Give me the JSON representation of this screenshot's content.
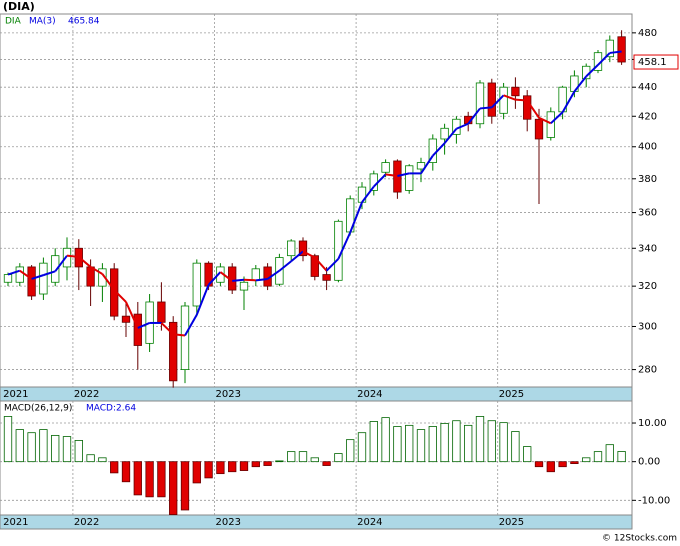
{
  "footer": "© 12Stocks.com",
  "chart_data": [
    {
      "type": "candlestick",
      "title": "(DIA)",
      "log_scale": true,
      "grid": true,
      "categories": [
        null,
        null,
        null,
        null,
        null,
        null,
        null,
        null,
        null,
        null,
        null,
        null,
        null,
        null,
        null,
        null,
        null,
        null,
        null,
        null,
        null,
        null,
        null,
        null,
        null,
        null,
        null,
        null,
        null,
        null,
        null,
        null,
        null,
        null,
        null,
        null,
        null,
        null,
        null,
        null,
        null,
        null,
        null,
        null,
        null,
        null,
        null,
        null,
        null,
        null,
        null,
        null,
        null
      ],
      "series": [
        {
          "name": "DIA",
          "color": "#008000",
          "down_color": "#e00000",
          "open": [
            322,
            322,
            330,
            316,
            322,
            330,
            340,
            330,
            320,
            329,
            305,
            306,
            292,
            312,
            302,
            280,
            310,
            332,
            322,
            330,
            318,
            323,
            330,
            321,
            336,
            344,
            336,
            326,
            323,
            349,
            366,
            373,
            384,
            391,
            373,
            386,
            390,
            405,
            408,
            420,
            415,
            443,
            422,
            440,
            434,
            418,
            406,
            423,
            437,
            446,
            452,
            462,
            477
          ],
          "high": [
            327,
            332,
            331,
            335,
            340,
            346,
            345,
            334,
            332,
            332,
            312,
            312,
            316,
            322,
            305,
            312,
            334,
            333,
            332,
            332,
            325,
            331,
            332,
            337,
            345,
            346,
            337,
            330,
            356,
            370,
            378,
            385,
            392,
            392,
            389,
            393,
            408,
            415,
            420,
            423,
            445,
            446,
            443,
            447,
            438,
            425,
            426,
            441,
            452,
            457,
            467,
            478,
            482
          ],
          "low": [
            320,
            320,
            313,
            313,
            320,
            323,
            318,
            310,
            312,
            303,
            295,
            280,
            288,
            298,
            272,
            274,
            305,
            318,
            320,
            316,
            308,
            320,
            318,
            320,
            333,
            333,
            323,
            318,
            322,
            347,
            362,
            370,
            381,
            368,
            371,
            378,
            385,
            395,
            402,
            410,
            412,
            415,
            418,
            425,
            410,
            365,
            404,
            418,
            433,
            440,
            450,
            458,
            456
          ],
          "close": [
            326,
            330,
            315,
            332,
            336,
            340,
            330,
            320,
            329,
            305,
            302,
            291,
            312,
            302,
            275,
            310,
            332,
            320,
            330,
            318,
            322,
            329,
            320,
            335,
            344,
            336,
            325,
            323,
            355,
            368,
            375,
            383,
            390,
            372,
            388,
            390,
            405,
            412,
            418,
            415,
            443,
            420,
            440,
            434,
            418,
            405,
            423,
            440,
            448,
            455,
            465,
            474.42,
            458.1
          ]
        },
        {
          "name": "MA(3)",
          "color": "#0000e0",
          "down_color": "#e00000",
          "values": [
            326,
            328,
            323.7,
            325.7,
            327.7,
            336,
            335.3,
            330,
            326.3,
            318,
            312,
            299.3,
            301.7,
            301.7,
            296.3,
            295.7,
            305.7,
            320.7,
            327.3,
            322.7,
            323.3,
            323,
            323.7,
            328,
            333,
            338.3,
            335,
            328,
            334.3,
            348.7,
            366,
            375.3,
            382.7,
            381.7,
            383.3,
            383.3,
            394.3,
            402.3,
            411.7,
            415,
            425.3,
            426,
            434.3,
            431.3,
            430.7,
            419,
            415.3,
            422.7,
            437,
            447.7,
            456,
            464.81,
            465.84
          ]
        }
      ],
      "ylim": [
        272.3,
        494.7
      ],
      "yticks": [
        280,
        300,
        320,
        340,
        360,
        380,
        400,
        420,
        440,
        460,
        480
      ],
      "xticks": [
        {
          "value": -0.5,
          "label": "2021"
        },
        {
          "value": 5.5,
          "label": "2022"
        },
        {
          "value": 17.5,
          "label": "2023"
        },
        {
          "value": 29.5,
          "label": "2024"
        },
        {
          "value": 41.5,
          "label": "2025"
        }
      ]
    },
    {
      "type": "bar",
      "title": "MACD(26,12,9)",
      "legend": "MACD:2.64",
      "grid": true,
      "color": "#006400",
      "down_color": "#e00000",
      "values": [
        11.7,
        8.3,
        7.5,
        8.3,
        6.8,
        6.5,
        5.5,
        1.8,
        1.0,
        -2.9,
        -5.2,
        -8.6,
        -9.1,
        -9.1,
        -13.7,
        -12.5,
        -5.5,
        -4.2,
        -3.1,
        -2.6,
        -2.3,
        -1.3,
        -1.0,
        0.2,
        2.6,
        2.6,
        1.0,
        -1.0,
        2.1,
        5.7,
        7.5,
        10.4,
        11.4,
        9.1,
        9.4,
        8.3,
        9.1,
        9.9,
        10.6,
        9.4,
        11.7,
        10.6,
        10.1,
        7.8,
        3.9,
        -1.3,
        -2.6,
        -1.3,
        -0.5,
        1.0,
        2.6,
        4.4,
        2.64
      ],
      "ylim": [
        -13.8,
        15.7
      ],
      "yticks": [
        {
          "value": -10,
          "label": "-10.00"
        },
        {
          "value": 0,
          "label": "0.00"
        },
        {
          "value": 10,
          "label": "10.00"
        }
      ],
      "xticks": [
        {
          "value": -0.5,
          "label": "2021"
        },
        {
          "value": 5.5,
          "label": "2022"
        },
        {
          "value": 17.5,
          "label": "2023"
        },
        {
          "value": 29.5,
          "label": "2024"
        },
        {
          "value": 41.5,
          "label": "2025"
        }
      ]
    }
  ]
}
